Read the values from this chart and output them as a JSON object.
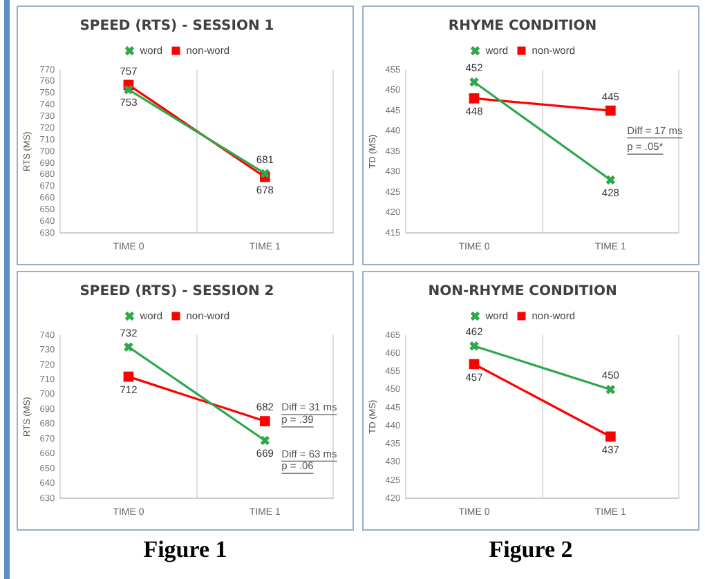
{
  "chart_data": [
    {
      "type": "line",
      "title": "SPEED (RTS) - SESSION 1",
      "ylabel": "RTS (MS)",
      "categories": [
        "TIME 0",
        "TIME 1"
      ],
      "series": [
        {
          "name": "word",
          "color": "#2ea84a",
          "marker": "cross",
          "values": [
            753,
            681
          ]
        },
        {
          "name": "non-word",
          "color": "#ff0000",
          "marker": "square",
          "values": [
            757,
            678
          ]
        }
      ],
      "ylim": [
        630,
        770
      ],
      "yticks": [
        630,
        640,
        650,
        660,
        670,
        680,
        690,
        700,
        710,
        720,
        730,
        740,
        750,
        760,
        770
      ],
      "grid": "x",
      "legend": "top",
      "data_labels": true
    },
    {
      "type": "line",
      "title": "RHYME CONDITION",
      "ylabel": "TD (MS)",
      "categories": [
        "TIME 0",
        "TIME 1"
      ],
      "series": [
        {
          "name": "word",
          "color": "#2ea84a",
          "marker": "cross",
          "values": [
            452,
            428
          ]
        },
        {
          "name": "non-word",
          "color": "#ff0000",
          "marker": "square",
          "values": [
            448,
            445
          ]
        }
      ],
      "ylim": [
        415,
        455
      ],
      "yticks": [
        415,
        420,
        425,
        430,
        435,
        440,
        445,
        450,
        455
      ],
      "grid": "x",
      "legend": "top",
      "data_labels": true,
      "annotations": [
        "Diff = 17 ms",
        "p = .05*"
      ]
    },
    {
      "type": "line",
      "title": "SPEED (RTS) - SESSION 2",
      "ylabel": "RTS (MS)",
      "categories": [
        "TIME 0",
        "TIME 1"
      ],
      "series": [
        {
          "name": "word",
          "color": "#2ea84a",
          "marker": "cross",
          "values": [
            732,
            669
          ]
        },
        {
          "name": "non-word",
          "color": "#ff0000",
          "marker": "square",
          "values": [
            712,
            682
          ]
        }
      ],
      "ylim": [
        630,
        740
      ],
      "yticks": [
        630,
        640,
        650,
        660,
        670,
        680,
        690,
        700,
        710,
        720,
        730,
        740
      ],
      "grid": "x",
      "legend": "top",
      "data_labels": true,
      "annotations": [
        "Diff = 31 ms",
        "p = .39",
        "Diff = 63 ms",
        "p = .06",
        "Figure 1"
      ]
    },
    {
      "type": "line",
      "title": "NON-RHYME CONDITION",
      "ylabel": "TD (MS)",
      "categories": [
        "TIME 0",
        "TIME 1"
      ],
      "series": [
        {
          "name": "word",
          "color": "#2ea84a",
          "marker": "cross",
          "values": [
            462,
            450
          ]
        },
        {
          "name": "non-word",
          "color": "#ff0000",
          "marker": "square",
          "values": [
            457,
            437
          ]
        }
      ],
      "ylim": [
        420,
        465
      ],
      "yticks": [
        420,
        425,
        430,
        435,
        440,
        445,
        450,
        455,
        460,
        465
      ],
      "grid": "x",
      "legend": "top",
      "data_labels": true,
      "annotations": [
        "Figure 2"
      ]
    }
  ]
}
